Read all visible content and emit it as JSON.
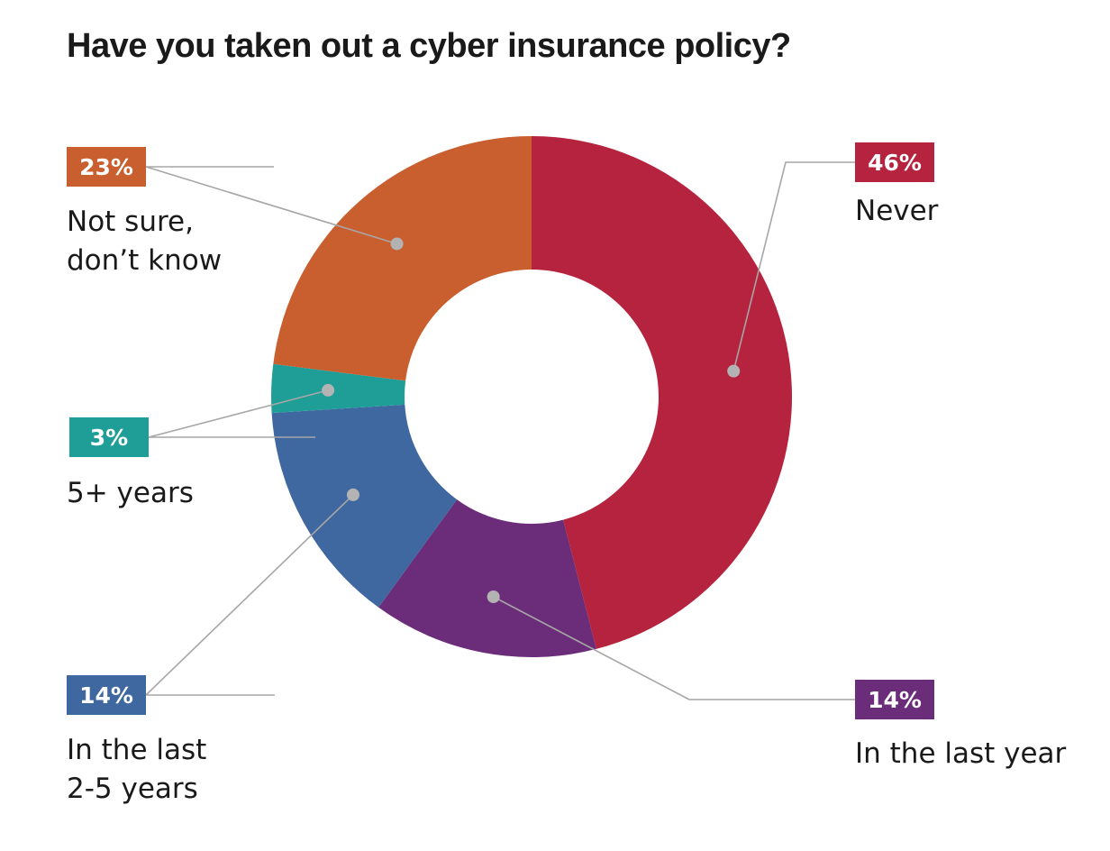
{
  "chart_data": {
    "type": "pie",
    "title": "Have you taken out a cyber insurance policy?",
    "donut": true,
    "categories": [
      "Never",
      "In the last year",
      "In the last 2-5 years",
      "5+ years",
      "Not sure, don’t know"
    ],
    "values": [
      46,
      14,
      14,
      3,
      23
    ],
    "value_labels": [
      "46%",
      "14%",
      "14%",
      "3%",
      "23%"
    ],
    "label_lines": [
      [
        "Never"
      ],
      [
        "In the last year"
      ],
      [
        "In the last",
        "2-5 years"
      ],
      [
        "5+ years"
      ],
      [
        "Not sure,",
        "don’t know"
      ]
    ],
    "colors": [
      "#B5233E",
      "#6B2C7A",
      "#3F67A0",
      "#1F9E98",
      "#C95E2E"
    ],
    "legend": "callouts"
  }
}
